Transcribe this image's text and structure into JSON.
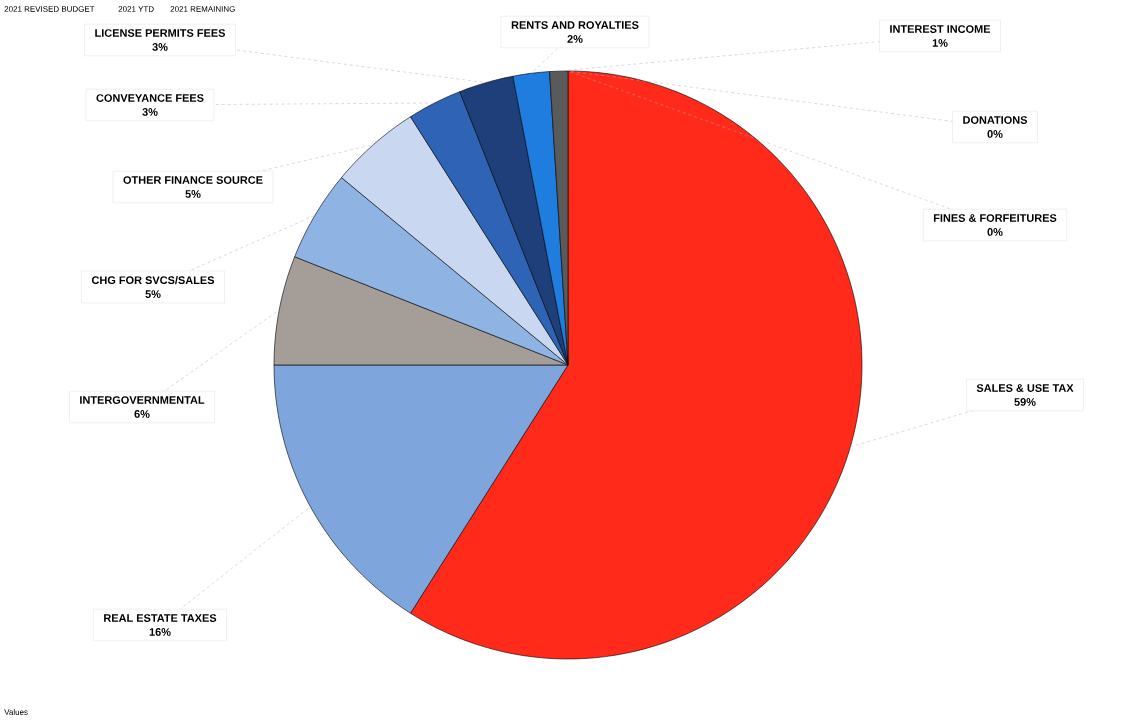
{
  "chart_data": {
    "type": "pie",
    "categories": [
      "SALES & USE TAX",
      "REAL ESTATE TAXES",
      "INTERGOVERNMENTAL",
      "CHG FOR SVCS/SALES",
      "OTHER FINANCE SOURCE",
      "CONVEYANCE FEES",
      "LICENSE PERMITS FEES",
      "RENTS AND ROYALTIES",
      "INTEREST INCOME",
      "DONATIONS",
      "FINES & FORFEITURES"
    ],
    "values": [
      59,
      16,
      6,
      5,
      5,
      3,
      3,
      2,
      1,
      0,
      0
    ],
    "value_labels": [
      "59%",
      "16%",
      "6%",
      "5%",
      "5%",
      "3%",
      "3%",
      "2%",
      "1%",
      "0%",
      "0%"
    ],
    "colors": [
      "#ff2a1a",
      "#7ea6dc",
      "#a59d97",
      "#8fb4e3",
      "#c9d8f0",
      "#2f63b5",
      "#1f3f7a",
      "#1f7de0",
      "#5a5a5a",
      "#000000",
      "#ffffff"
    ],
    "annotations": [
      "2021 REVISED BUDGET",
      "2021 YTD",
      "2021 REMAINING",
      "Values"
    ]
  }
}
